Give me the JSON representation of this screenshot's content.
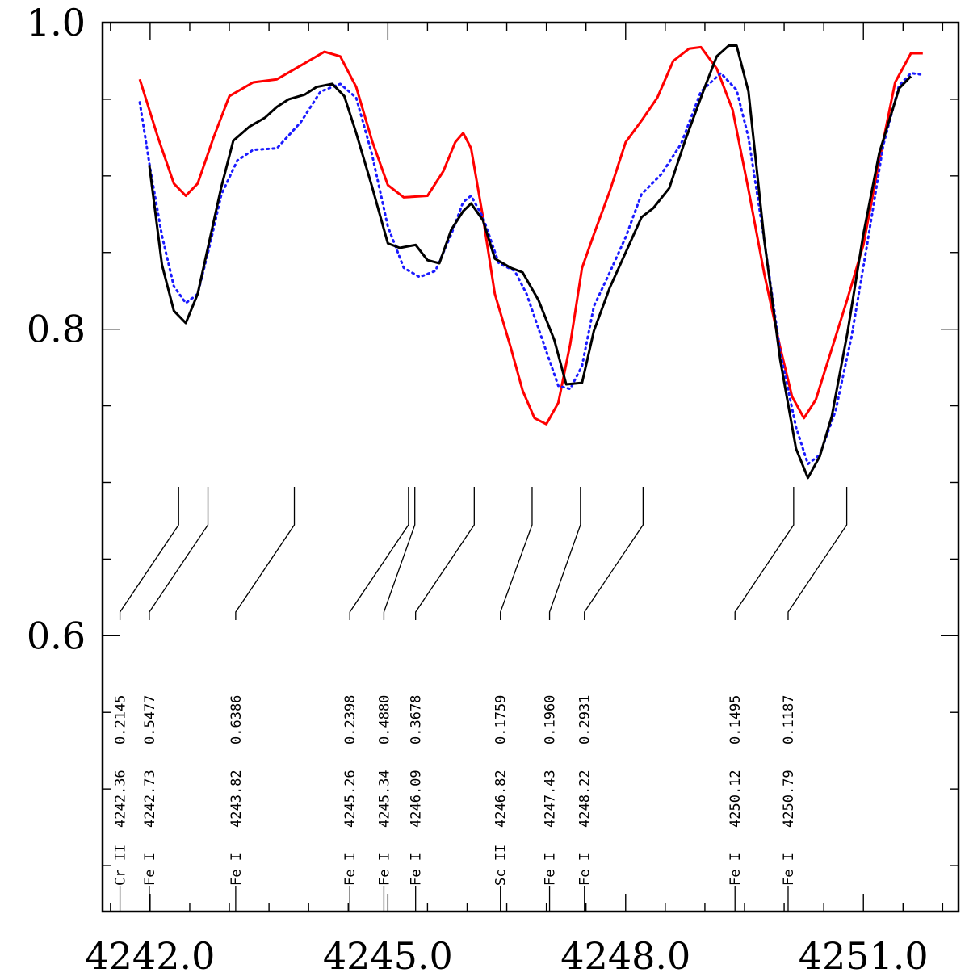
{
  "chart_data": {
    "type": "line",
    "title": "",
    "xlabel": "",
    "ylabel": "",
    "xlim": [
      4241.4,
      4252.2
    ],
    "ylim": [
      0.42,
      1.0
    ],
    "x_ticks": [
      4242.0,
      4245.0,
      4248.0,
      4251.0
    ],
    "x_tick_labels": [
      "4242.0",
      "4245.0",
      "4248.0",
      "4251.0"
    ],
    "y_ticks": [
      0.6,
      0.8,
      1.0
    ],
    "y_tick_labels": [
      "0.6",
      "0.8",
      "1.0"
    ],
    "series": [
      {
        "color": "#ff0000",
        "style": "solid",
        "points": [
          [
            4241.87,
            0.963
          ],
          [
            4242.1,
            0.925
          ],
          [
            4242.3,
            0.895
          ],
          [
            4242.45,
            0.887
          ],
          [
            4242.6,
            0.895
          ],
          [
            4242.8,
            0.925
          ],
          [
            4243.0,
            0.952
          ],
          [
            4243.3,
            0.961
          ],
          [
            4243.6,
            0.963
          ],
          [
            4243.9,
            0.972
          ],
          [
            4244.2,
            0.981
          ],
          [
            4244.4,
            0.978
          ],
          [
            4244.6,
            0.958
          ],
          [
            4244.8,
            0.923
          ],
          [
            4245.0,
            0.894
          ],
          [
            4245.2,
            0.886
          ],
          [
            4245.5,
            0.887
          ],
          [
            4245.7,
            0.903
          ],
          [
            4245.85,
            0.922
          ],
          [
            4245.95,
            0.928
          ],
          [
            4246.05,
            0.918
          ],
          [
            4246.2,
            0.873
          ],
          [
            4246.35,
            0.823
          ],
          [
            4246.55,
            0.788
          ],
          [
            4246.7,
            0.76
          ],
          [
            4246.85,
            0.742
          ],
          [
            4247.0,
            0.738
          ],
          [
            4247.15,
            0.752
          ],
          [
            4247.3,
            0.79
          ],
          [
            4247.45,
            0.84
          ],
          [
            4247.6,
            0.862
          ],
          [
            4247.8,
            0.89
          ],
          [
            4248.0,
            0.922
          ],
          [
            4248.2,
            0.936
          ],
          [
            4248.4,
            0.951
          ],
          [
            4248.6,
            0.975
          ],
          [
            4248.8,
            0.983
          ],
          [
            4248.95,
            0.984
          ],
          [
            4249.15,
            0.97
          ],
          [
            4249.35,
            0.943
          ],
          [
            4249.55,
            0.891
          ],
          [
            4249.75,
            0.836
          ],
          [
            4249.95,
            0.788
          ],
          [
            4250.1,
            0.756
          ],
          [
            4250.25,
            0.742
          ],
          [
            4250.4,
            0.754
          ],
          [
            4250.6,
            0.787
          ],
          [
            4250.8,
            0.82
          ],
          [
            4251.0,
            0.855
          ],
          [
            4251.2,
            0.91
          ],
          [
            4251.4,
            0.961
          ],
          [
            4251.6,
            0.98
          ],
          [
            4251.75,
            0.98
          ]
        ]
      },
      {
        "color": "#1a1aff",
        "style": "dotted",
        "points": [
          [
            4241.87,
            0.948
          ],
          [
            4242.0,
            0.905
          ],
          [
            4242.15,
            0.861
          ],
          [
            4242.3,
            0.828
          ],
          [
            4242.45,
            0.817
          ],
          [
            4242.6,
            0.823
          ],
          [
            4242.75,
            0.854
          ],
          [
            4242.9,
            0.888
          ],
          [
            4243.1,
            0.91
          ],
          [
            4243.3,
            0.917
          ],
          [
            4243.6,
            0.918
          ],
          [
            4243.9,
            0.935
          ],
          [
            4244.15,
            0.955
          ],
          [
            4244.4,
            0.96
          ],
          [
            4244.6,
            0.951
          ],
          [
            4244.8,
            0.914
          ],
          [
            4245.0,
            0.867
          ],
          [
            4245.2,
            0.84
          ],
          [
            4245.4,
            0.834
          ],
          [
            4245.6,
            0.838
          ],
          [
            4245.8,
            0.862
          ],
          [
            4245.95,
            0.883
          ],
          [
            4246.05,
            0.887
          ],
          [
            4246.2,
            0.873
          ],
          [
            4246.4,
            0.843
          ],
          [
            4246.6,
            0.838
          ],
          [
            4246.75,
            0.823
          ],
          [
            4246.95,
            0.793
          ],
          [
            4247.15,
            0.763
          ],
          [
            4247.3,
            0.761
          ],
          [
            4247.45,
            0.776
          ],
          [
            4247.6,
            0.815
          ],
          [
            4247.8,
            0.837
          ],
          [
            4248.0,
            0.86
          ],
          [
            4248.2,
            0.888
          ],
          [
            4248.45,
            0.901
          ],
          [
            4248.7,
            0.921
          ],
          [
            4248.95,
            0.955
          ],
          [
            4249.2,
            0.967
          ],
          [
            4249.4,
            0.956
          ],
          [
            4249.55,
            0.925
          ],
          [
            4249.75,
            0.858
          ],
          [
            4249.95,
            0.785
          ],
          [
            4250.15,
            0.736
          ],
          [
            4250.3,
            0.712
          ],
          [
            4250.45,
            0.718
          ],
          [
            4250.65,
            0.747
          ],
          [
            4250.85,
            0.795
          ],
          [
            4251.05,
            0.856
          ],
          [
            4251.25,
            0.92
          ],
          [
            4251.45,
            0.959
          ],
          [
            4251.6,
            0.967
          ],
          [
            4251.75,
            0.966
          ]
        ]
      },
      {
        "color": "#000000",
        "style": "solid",
        "points": [
          [
            4241.99,
            0.907
          ],
          [
            4242.15,
            0.842
          ],
          [
            4242.3,
            0.812
          ],
          [
            4242.45,
            0.804
          ],
          [
            4242.6,
            0.823
          ],
          [
            4242.75,
            0.858
          ],
          [
            4242.9,
            0.893
          ],
          [
            4243.05,
            0.923
          ],
          [
            4243.25,
            0.932
          ],
          [
            4243.45,
            0.938
          ],
          [
            4243.6,
            0.945
          ],
          [
            4243.75,
            0.95
          ],
          [
            4243.95,
            0.953
          ],
          [
            4244.1,
            0.958
          ],
          [
            4244.3,
            0.96
          ],
          [
            4244.45,
            0.952
          ],
          [
            4244.6,
            0.928
          ],
          [
            4244.8,
            0.893
          ],
          [
            4245.0,
            0.856
          ],
          [
            4245.15,
            0.853
          ],
          [
            4245.35,
            0.855
          ],
          [
            4245.5,
            0.845
          ],
          [
            4245.65,
            0.843
          ],
          [
            4245.8,
            0.865
          ],
          [
            4245.95,
            0.877
          ],
          [
            4246.05,
            0.882
          ],
          [
            4246.2,
            0.871
          ],
          [
            4246.35,
            0.846
          ],
          [
            4246.55,
            0.84
          ],
          [
            4246.7,
            0.837
          ],
          [
            4246.9,
            0.819
          ],
          [
            4247.1,
            0.793
          ],
          [
            4247.25,
            0.764
          ],
          [
            4247.45,
            0.765
          ],
          [
            4247.6,
            0.799
          ],
          [
            4247.8,
            0.827
          ],
          [
            4248.0,
            0.85
          ],
          [
            4248.2,
            0.873
          ],
          [
            4248.35,
            0.879
          ],
          [
            4248.55,
            0.892
          ],
          [
            4248.75,
            0.923
          ],
          [
            4249.0,
            0.958
          ],
          [
            4249.15,
            0.978
          ],
          [
            4249.3,
            0.985
          ],
          [
            4249.4,
            0.985
          ],
          [
            4249.55,
            0.955
          ],
          [
            4249.75,
            0.858
          ],
          [
            4249.95,
            0.78
          ],
          [
            4250.15,
            0.722
          ],
          [
            4250.3,
            0.703
          ],
          [
            4250.45,
            0.717
          ],
          [
            4250.6,
            0.743
          ],
          [
            4250.8,
            0.798
          ],
          [
            4251.0,
            0.862
          ],
          [
            4251.2,
            0.915
          ],
          [
            4251.45,
            0.957
          ],
          [
            4251.6,
            0.965
          ]
        ]
      }
    ],
    "line_ids": [
      {
        "species": "Cr II",
        "wavelength": "4242.36",
        "strength": "0.2145",
        "x": 4242.36,
        "x_label": 4241.62
      },
      {
        "species": "Fe I",
        "wavelength": "4242.73",
        "strength": "0.5477",
        "x": 4242.73,
        "x_label": 4241.99
      },
      {
        "species": "Fe I",
        "wavelength": "4243.82",
        "strength": "0.6386",
        "x": 4243.82,
        "x_label": 4243.08
      },
      {
        "species": "Fe I",
        "wavelength": "4245.26",
        "strength": "0.2398",
        "x": 4245.26,
        "x_label": 4244.52
      },
      {
        "species": "Fe I",
        "wavelength": "4245.34",
        "strength": "0.4880",
        "x": 4245.34,
        "x_label": 4244.95
      },
      {
        "species": "Fe I",
        "wavelength": "4246.09",
        "strength": "0.3678",
        "x": 4246.09,
        "x_label": 4245.35
      },
      {
        "species": "Sc II",
        "wavelength": "4246.82",
        "strength": "0.1759",
        "x": 4246.82,
        "x_label": 4246.42
      },
      {
        "species": "Fe I",
        "wavelength": "4247.43",
        "strength": "0.1960",
        "x": 4247.43,
        "x_label": 4247.04
      },
      {
        "species": "Fe I",
        "wavelength": "4248.22",
        "strength": "0.2931",
        "x": 4248.22,
        "x_label": 4247.48
      },
      {
        "species": "Fe I",
        "wavelength": "4250.12",
        "strength": "0.1495",
        "x": 4250.12,
        "x_label": 4249.38
      },
      {
        "species": "Fe I",
        "wavelength": "4250.79",
        "strength": "0.1187",
        "x": 4250.79,
        "x_label": 4250.05
      }
    ]
  }
}
